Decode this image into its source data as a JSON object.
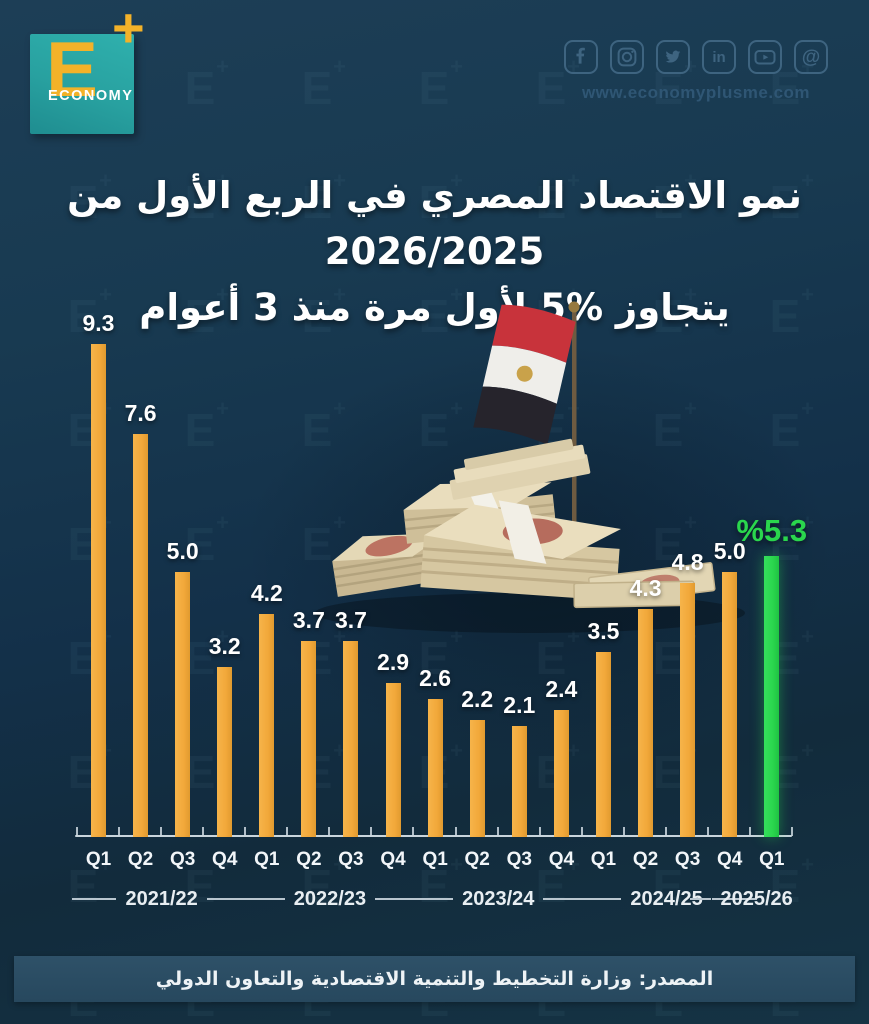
{
  "logo": {
    "letter": "E",
    "plus": "+",
    "word": "ECONOMY"
  },
  "header": {
    "website": "www.economyplusme.com",
    "social_icons": [
      "facebook",
      "instagram",
      "twitter",
      "linkedin",
      "youtube",
      "threads"
    ]
  },
  "title": {
    "line1": "نمو الاقتصاد المصري في الربع الأول من 2026/2025",
    "line2": "يتجاوز %5 لأول مرة منذ 3 أعوام"
  },
  "chart_data": {
    "type": "bar",
    "quarters": [
      "Q1",
      "Q2",
      "Q3",
      "Q4",
      "Q1",
      "Q2",
      "Q3",
      "Q4",
      "Q1",
      "Q2",
      "Q3",
      "Q4",
      "Q1",
      "Q2",
      "Q3",
      "Q4",
      "Q1"
    ],
    "values": [
      9.3,
      7.6,
      5.0,
      3.2,
      4.2,
      3.7,
      3.7,
      2.9,
      2.6,
      2.2,
      2.1,
      2.4,
      3.5,
      4.3,
      4.8,
      5.0,
      5.3
    ],
    "value_labels": [
      "9.3",
      "7.6",
      "5.0",
      "3.2",
      "4.2",
      "3.7",
      "3.7",
      "2.9",
      "2.6",
      "2.2",
      "2.1",
      "2.4",
      "3.5",
      "4.3",
      "4.8",
      "5.0",
      "%5.3"
    ],
    "year_groups": [
      {
        "label": "2021/22",
        "start": 0,
        "count": 4
      },
      {
        "label": "2022/23",
        "start": 4,
        "count": 4
      },
      {
        "label": "2023/24",
        "start": 8,
        "count": 4
      },
      {
        "label": "2024/25",
        "start": 12,
        "count": 4
      },
      {
        "label": "2025/26",
        "start": 16,
        "count": 1
      }
    ],
    "bar_color": "#F2A83A",
    "highlight_color": "#2AD64D",
    "highlight_index": 16,
    "ylim": [
      0,
      10
    ],
    "unit": "percent",
    "grid": false,
    "legend": false
  },
  "decor": {
    "flag": "egypt-flag",
    "money": "egyptian-pound-banknotes"
  },
  "footer": {
    "source": "المصدر: وزارة التخطيط والتنمية الاقتصادية والتعاون الدولي"
  }
}
